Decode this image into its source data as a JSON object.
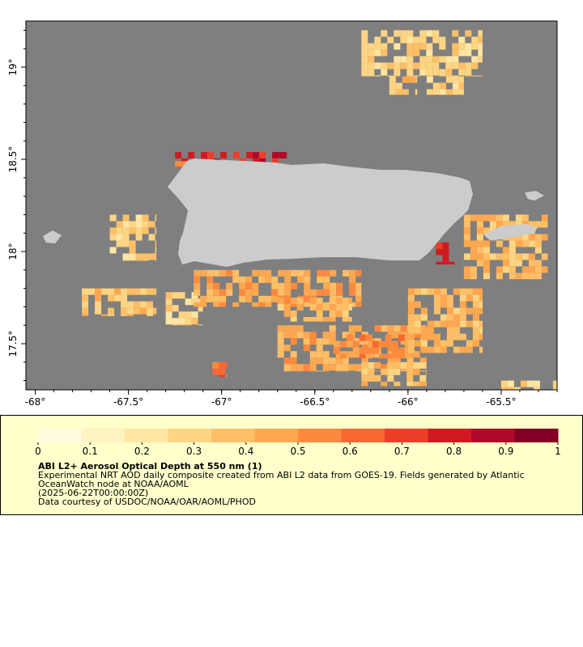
{
  "map": {
    "lon_range": [
      -68.05,
      -65.2
    ],
    "lat_range": [
      17.25,
      19.25
    ],
    "ocean_color": "#7f7f7f",
    "land_color": "#cccccc",
    "x_ticks": [
      {
        "value": -68,
        "label": "-68°"
      },
      {
        "value": -67.5,
        "label": "-67.5°"
      },
      {
        "value": -67,
        "label": "-67°"
      },
      {
        "value": -66.5,
        "label": "-66.5°"
      },
      {
        "value": -66,
        "label": "-66°"
      },
      {
        "value": -65.5,
        "label": "-65.5°"
      }
    ],
    "y_ticks": [
      {
        "value": 19,
        "label": "19°"
      },
      {
        "value": 18.5,
        "label": "18.5°"
      },
      {
        "value": 18,
        "label": "18°"
      },
      {
        "value": 17.5,
        "label": "17.5°"
      }
    ],
    "aod_patches": [
      {
        "lon": [
          -66.25,
          -65.6
        ],
        "lat": [
          18.95,
          19.2
        ],
        "aod": 0.3
      },
      {
        "lon": [
          -65.9,
          -65.7
        ],
        "lat": [
          18.85,
          18.95
        ],
        "aod": 0.3
      },
      {
        "lon": [
          -66.1,
          -65.95
        ],
        "lat": [
          18.85,
          18.95
        ],
        "aod": 0.35
      },
      {
        "lon": [
          -67.25,
          -66.65
        ],
        "lat": [
          18.48,
          18.54
        ],
        "aod": 0.8
      },
      {
        "lon": [
          -67.25,
          -66.85
        ],
        "lat": [
          18.46,
          18.49
        ],
        "aod": 0.65
      },
      {
        "lon": [
          -67.6,
          -67.35
        ],
        "lat": [
          17.95,
          18.2
        ],
        "aod": 0.3
      },
      {
        "lon": [
          -67.75,
          -67.35
        ],
        "lat": [
          17.65,
          17.8
        ],
        "aod": 0.35
      },
      {
        "lon": [
          -67.3,
          -67.1
        ],
        "lat": [
          17.6,
          17.78
        ],
        "aod": 0.3
      },
      {
        "lon": [
          -67.15,
          -66.25
        ],
        "lat": [
          17.7,
          17.9
        ],
        "aod": 0.45
      },
      {
        "lon": [
          -66.7,
          -66.3
        ],
        "lat": [
          17.62,
          17.75
        ],
        "aod": 0.4
      },
      {
        "lon": [
          -66.7,
          -65.9
        ],
        "lat": [
          17.35,
          17.6
        ],
        "aod": 0.45
      },
      {
        "lon": [
          -66.4,
          -66.0
        ],
        "lat": [
          17.42,
          17.55
        ],
        "aod": 0.55
      },
      {
        "lon": [
          -66.0,
          -65.6
        ],
        "lat": [
          17.45,
          17.8
        ],
        "aod": 0.4
      },
      {
        "lon": [
          -65.7,
          -65.25
        ],
        "lat": [
          17.85,
          18.2
        ],
        "aod": 0.4
      },
      {
        "lon": [
          -65.85,
          -65.75
        ],
        "lat": [
          17.93,
          18.05
        ],
        "aod": 0.75
      },
      {
        "lon": [
          -66.25,
          -65.9
        ],
        "lat": [
          17.27,
          17.4
        ],
        "aod": 0.35
      },
      {
        "lon": [
          -65.5,
          -65.2
        ],
        "lat": [
          17.25,
          17.3
        ],
        "aod": 0.3
      },
      {
        "lon": [
          -67.05,
          -66.97
        ],
        "lat": [
          17.32,
          17.4
        ],
        "aod": 0.6
      }
    ]
  },
  "colorbar": {
    "tick_labels": [
      "0",
      "0.1",
      "0.2",
      "0.3",
      "0.4",
      "0.5",
      "0.6",
      "0.7",
      "0.8",
      "0.9",
      "1"
    ],
    "colors": [
      "#fffbdc",
      "#fff3c2",
      "#ffe6a3",
      "#fed583",
      "#febf66",
      "#fda850",
      "#fc8a3e",
      "#f76833",
      "#eb3f28",
      "#d01a22",
      "#ae0a2a",
      "#820026"
    ]
  },
  "legend": {
    "title": "ABI L2+ Aerosol Optical Depth at 550 nm (1)",
    "description": "Experimental NRT AOD daily composite created from ABI L2 data from GOES-19. Fields generated by Atlantic OceanWatch node at NOAA/AOML",
    "date": "(2025-06-22T00:00:00Z)",
    "credit": "Data courtesy of USDOC/NOAA/OAR/AOML/PHOD"
  }
}
